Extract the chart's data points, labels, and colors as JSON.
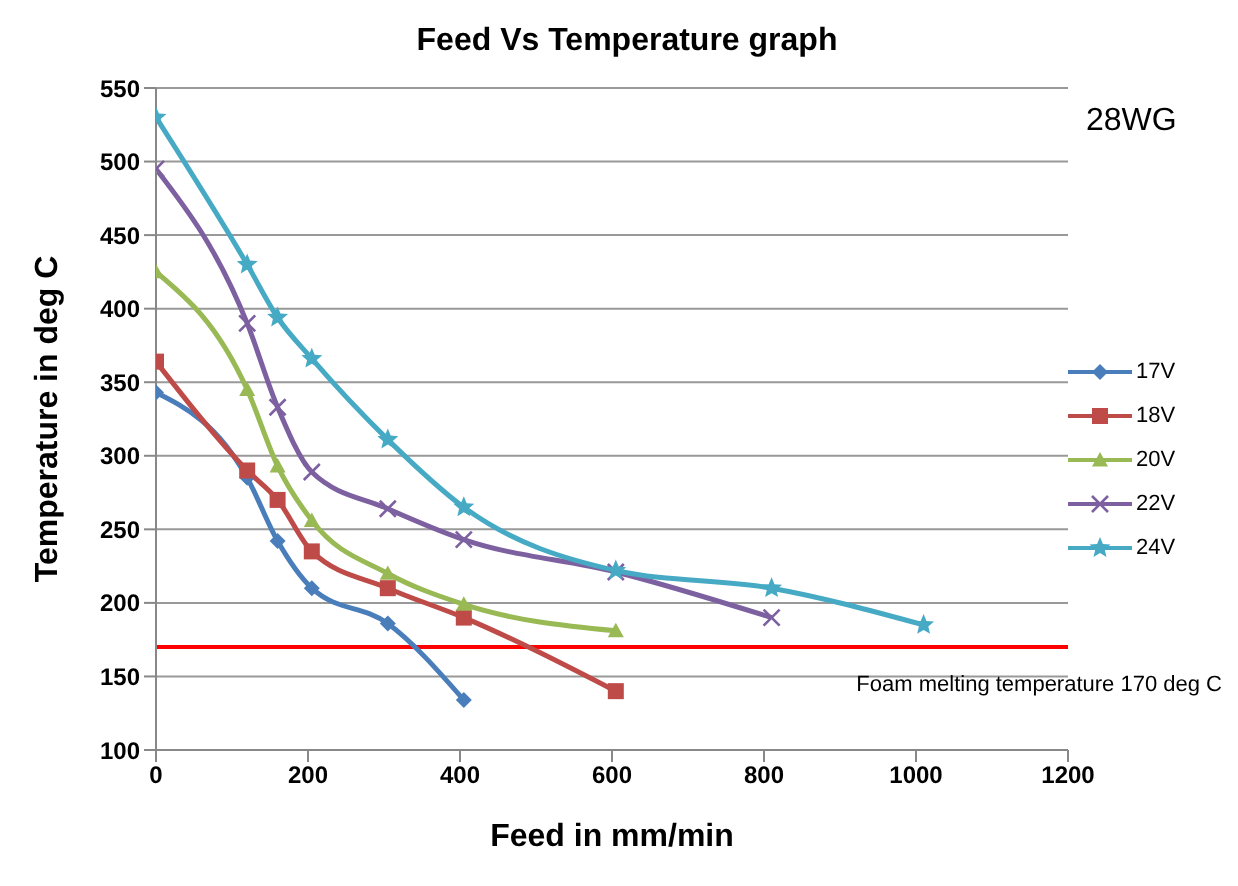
{
  "chart_data": {
    "type": "line",
    "title": "Feed Vs Temperature graph",
    "xlabel": "Feed in mm/min",
    "ylabel": "Temperature in deg C",
    "annotations": [
      "28WG"
    ],
    "xlim": [
      0,
      1200
    ],
    "xticks": [
      0,
      200,
      400,
      600,
      800,
      1000,
      1200
    ],
    "ylim": [
      100,
      550
    ],
    "yticks": [
      100,
      150,
      200,
      250,
      300,
      350,
      400,
      450,
      500,
      550
    ],
    "grid": "y",
    "legend": "right",
    "ref_lines": [
      {
        "axis": "y",
        "value": 170,
        "label": "Foam melting temperature 170 deg C",
        "color": "#ff0000"
      }
    ],
    "series": [
      {
        "name": "17V",
        "color": "#4a7ebb",
        "marker": "diamond",
        "x": [
          0,
          120,
          160,
          205,
          305,
          405
        ],
        "values": [
          343,
          285,
          242,
          210,
          186,
          134
        ]
      },
      {
        "name": "18V",
        "color": "#be4b48",
        "marker": "square",
        "x": [
          0,
          120,
          160,
          205,
          305,
          405,
          605
        ],
        "values": [
          364,
          290,
          270,
          235,
          210,
          190,
          140
        ]
      },
      {
        "name": "20V",
        "color": "#98b954",
        "marker": "triangle",
        "x": [
          0,
          120,
          160,
          205,
          305,
          405,
          605
        ],
        "values": [
          425,
          345,
          293,
          256,
          220,
          199,
          181
        ]
      },
      {
        "name": "22V",
        "color": "#7d60a0",
        "marker": "cross",
        "x": [
          0,
          120,
          160,
          205,
          305,
          405,
          605,
          810
        ],
        "values": [
          495,
          390,
          333,
          289,
          264,
          243,
          221,
          190
        ]
      },
      {
        "name": "24V",
        "color": "#46aac5",
        "marker": "star",
        "x": [
          0,
          120,
          160,
          205,
          305,
          405,
          605,
          810,
          1010
        ],
        "values": [
          530,
          430,
          394,
          366,
          311,
          265,
          222,
          210,
          185
        ]
      }
    ]
  }
}
